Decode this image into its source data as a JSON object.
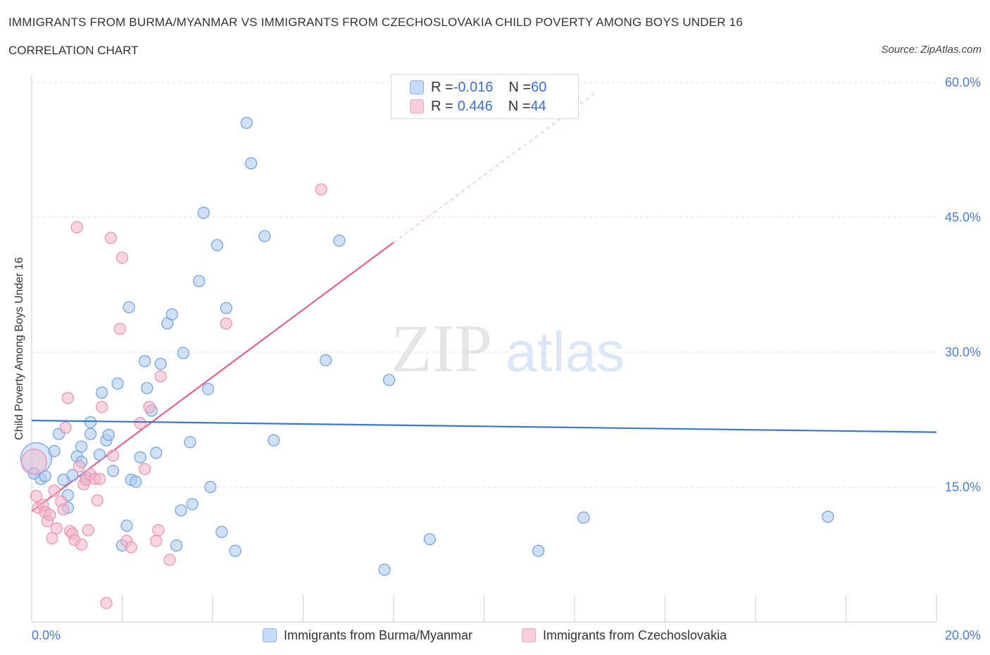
{
  "title": "IMMIGRANTS FROM BURMA/MYANMAR VS IMMIGRANTS FROM CZECHOSLOVAKIA CHILD POVERTY AMONG BOYS UNDER 16",
  "subtitle": "CORRELATION CHART",
  "source": "Source: ZipAtlas.com",
  "watermark": {
    "zip": "ZIP",
    "atlas": "atlas"
  },
  "legend": {
    "series1": {
      "r_label": "R = ",
      "r_value": "-0.016",
      "n_label": "N = ",
      "n_value": "60"
    },
    "series2": {
      "r_label": "R = ",
      "r_value": "0.446",
      "n_label": "N = ",
      "n_value": "44"
    }
  },
  "chart_data": {
    "type": "scatter",
    "title": "IMMIGRANTS FROM BURMA/MYANMAR VS IMMIGRANTS FROM CZECHOSLOVAKIA CHILD POVERTY AMONG BOYS UNDER 16",
    "xlabel": "",
    "ylabel": "Child Poverty Among Boys Under 16",
    "xlim": [
      0,
      20
    ],
    "ylim": [
      0,
      60
    ],
    "x_tick_labels": [
      "0.0%",
      "20.0%"
    ],
    "y_tick_labels": [
      "15.0%",
      "30.0%",
      "45.0%",
      "60.0%"
    ],
    "y_ticks": [
      15,
      30,
      45,
      60
    ],
    "grid": true,
    "legend_position": "top-center",
    "colors": {
      "series1": "#3a78d0",
      "series2": "#e0608f",
      "series1_fill": "#a9c8f0",
      "series2_fill": "#f4b3c9"
    },
    "series": [
      {
        "name": "Immigrants from Burma/Myanmar",
        "r": -0.016,
        "n": 60,
        "trend": {
          "x": [
            0,
            20
          ],
          "y": [
            22.4,
            21.1
          ]
        },
        "points": [
          [
            0.1,
            18.2
          ],
          [
            0.2,
            15.9
          ],
          [
            0.3,
            16.2
          ],
          [
            0.5,
            19.0
          ],
          [
            0.6,
            20.9
          ],
          [
            0.7,
            15.8
          ],
          [
            0.8,
            12.7
          ],
          [
            0.8,
            14.1
          ],
          [
            0.9,
            16.3
          ],
          [
            1.0,
            18.4
          ],
          [
            1.1,
            17.8
          ],
          [
            1.1,
            19.5
          ],
          [
            1.2,
            16.1
          ],
          [
            1.3,
            20.9
          ],
          [
            1.3,
            22.2
          ],
          [
            1.5,
            18.6
          ],
          [
            1.55,
            25.5
          ],
          [
            1.65,
            20.2
          ],
          [
            1.7,
            20.8
          ],
          [
            1.8,
            16.8
          ],
          [
            1.9,
            26.5
          ],
          [
            2.0,
            8.5
          ],
          [
            2.1,
            10.7
          ],
          [
            2.15,
            35.0
          ],
          [
            2.2,
            15.8
          ],
          [
            2.3,
            15.6
          ],
          [
            2.4,
            18.3
          ],
          [
            2.5,
            29.0
          ],
          [
            2.55,
            26.0
          ],
          [
            2.65,
            23.5
          ],
          [
            2.75,
            18.8
          ],
          [
            2.85,
            28.7
          ],
          [
            3.0,
            33.2
          ],
          [
            3.1,
            34.2
          ],
          [
            3.2,
            8.5
          ],
          [
            3.3,
            12.4
          ],
          [
            3.35,
            29.9
          ],
          [
            3.5,
            20.0
          ],
          [
            3.55,
            13.1
          ],
          [
            3.7,
            37.9
          ],
          [
            3.8,
            45.5
          ],
          [
            3.9,
            25.9
          ],
          [
            3.95,
            15.0
          ],
          [
            4.1,
            41.9
          ],
          [
            4.2,
            10.0
          ],
          [
            4.3,
            34.9
          ],
          [
            4.5,
            7.9
          ],
          [
            4.75,
            55.5
          ],
          [
            4.85,
            51.0
          ],
          [
            5.15,
            42.9
          ],
          [
            5.35,
            20.2
          ],
          [
            6.5,
            29.1
          ],
          [
            6.8,
            42.4
          ],
          [
            7.8,
            5.8
          ],
          [
            7.9,
            26.9
          ],
          [
            8.8,
            9.2
          ],
          [
            11.2,
            7.9
          ],
          [
            12.2,
            11.6
          ],
          [
            17.6,
            11.7
          ],
          [
            0.05,
            16.5
          ]
        ]
      },
      {
        "name": "Immigrants from Czechoslovakia",
        "r": 0.446,
        "n": 44,
        "trend_solid": {
          "x": [
            0,
            8.0
          ],
          "y": [
            12.3,
            42.2
          ]
        },
        "trend_dashed": {
          "x": [
            8.0,
            12.5
          ],
          "y": [
            42.2,
            59.0
          ]
        },
        "points": [
          [
            0.05,
            17.8
          ],
          [
            0.1,
            14.0
          ],
          [
            0.15,
            12.7
          ],
          [
            0.25,
            13.0
          ],
          [
            0.3,
            12.2
          ],
          [
            0.35,
            11.2
          ],
          [
            0.4,
            11.9
          ],
          [
            0.45,
            9.3
          ],
          [
            0.5,
            14.6
          ],
          [
            0.55,
            10.4
          ],
          [
            0.65,
            13.4
          ],
          [
            0.7,
            12.5
          ],
          [
            0.75,
            21.6
          ],
          [
            0.8,
            24.9
          ],
          [
            0.85,
            10.1
          ],
          [
            0.9,
            9.8
          ],
          [
            0.95,
            9.1
          ],
          [
            1.0,
            43.9
          ],
          [
            1.05,
            17.3
          ],
          [
            1.1,
            8.6
          ],
          [
            1.15,
            15.3
          ],
          [
            1.2,
            15.8
          ],
          [
            1.25,
            10.2
          ],
          [
            1.3,
            16.4
          ],
          [
            1.4,
            15.9
          ],
          [
            1.45,
            13.5
          ],
          [
            1.5,
            15.9
          ],
          [
            1.55,
            23.9
          ],
          [
            1.65,
            2.1
          ],
          [
            1.75,
            42.7
          ],
          [
            1.8,
            18.5
          ],
          [
            1.95,
            32.6
          ],
          [
            2.0,
            40.5
          ],
          [
            2.1,
            9.0
          ],
          [
            2.2,
            8.3
          ],
          [
            2.4,
            22.1
          ],
          [
            2.5,
            17.0
          ],
          [
            2.6,
            23.9
          ],
          [
            2.75,
            9.0
          ],
          [
            2.8,
            10.2
          ],
          [
            2.85,
            27.3
          ],
          [
            3.05,
            6.9
          ],
          [
            4.3,
            33.2
          ],
          [
            6.4,
            48.1
          ]
        ]
      }
    ]
  },
  "bottom_legend": {
    "series1": "Immigrants from Burma/Myanmar",
    "series2": "Immigrants from Czechoslovakia"
  }
}
